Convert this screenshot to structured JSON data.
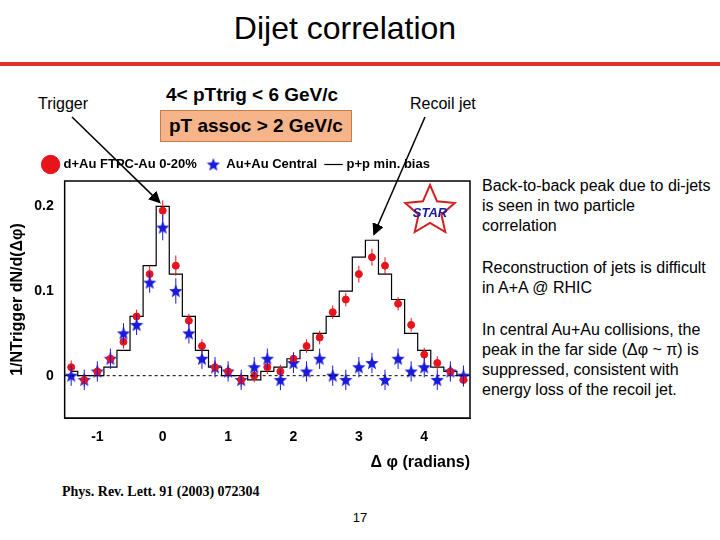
{
  "title": "Dijet correlation",
  "annotations": {
    "trigger": "Trigger",
    "recoil": "Recoil jet"
  },
  "notes": [
    "Back-to-back peak due to di-jets is seen in two particle correlation",
    "Reconstruction of jets is difficult in A+A @ RHIC",
    "In central Au+Au collisions, the peak in the far side (Δφ ~ π) is suppressed, consistent with energy loss of the recoil jet."
  ],
  "page_number": "17",
  "chart_data": {
    "type": "scatter",
    "kinematics": [
      "4< pTtrig < 6 GeV/c",
      "pT assoc > 2 GeV/c"
    ],
    "logo": "STAR",
    "citation": "Phys. Rev. Lett. 91 (2003) 072304",
    "x_label": "Δ φ (radians)",
    "y_label": "1/NTrigger dN/d(Δφ)",
    "xlim": [
      -1.5,
      4.7
    ],
    "xticks": [
      -1,
      0,
      1,
      2,
      3,
      4
    ],
    "ylim": [
      -0.05,
      0.23
    ],
    "yticks": [
      0,
      0.1,
      0.2
    ],
    "legend": "top",
    "x": [
      -1.4,
      -1.2,
      -1.0,
      -0.8,
      -0.6,
      -0.4,
      -0.2,
      0,
      0.2,
      0.4,
      0.6,
      0.8,
      1.0,
      1.2,
      1.4,
      1.6,
      1.8,
      2.0,
      2.2,
      2.4,
      2.6,
      2.8,
      3.0,
      3.2,
      3.4,
      3.6,
      3.8,
      4.0,
      4.2,
      4.4,
      4.6
    ],
    "series": [
      {
        "name": "d+Au FTPC-Au 0-20%",
        "color": "#e8141c",
        "marker": "circle",
        "values": [
          0.01,
          -0.005,
          0.005,
          0.02,
          0.04,
          0.07,
          0.12,
          0.195,
          0.13,
          0.065,
          0.035,
          0.01,
          0.005,
          -0.005,
          0,
          0.01,
          0.005,
          0.02,
          0.035,
          0.045,
          0.075,
          0.09,
          0.12,
          0.14,
          0.13,
          0.085,
          0.06,
          0.025,
          0.015,
          0.005,
          -0.005
        ],
        "errors": [
          0.008,
          0.008,
          0.008,
          0.008,
          0.008,
          0.008,
          0.01,
          0.012,
          0.012,
          0.008,
          0.008,
          0.008,
          0.008,
          0.008,
          0.008,
          0.008,
          0.008,
          0.008,
          0.008,
          0.008,
          0.008,
          0.008,
          0.01,
          0.01,
          0.01,
          0.008,
          0.008,
          0.008,
          0.008,
          0.008,
          0.008
        ]
      },
      {
        "name": "p+p min. bias",
        "color": "#000000",
        "type": "line",
        "line_style": "step",
        "values": [
          0.005,
          0,
          0,
          0.01,
          0.03,
          0.07,
          0.13,
          0.2,
          0.12,
          0.07,
          0.03,
          0.01,
          0,
          0,
          -0.005,
          0.005,
          0.01,
          0.02,
          0.03,
          0.05,
          0.07,
          0.1,
          0.14,
          0.16,
          0.12,
          0.09,
          0.05,
          0.03,
          0.01,
          0.005,
          0
        ]
      },
      {
        "name": "Au+Au Central",
        "color": "#1a1adc",
        "marker": "star",
        "values": [
          0,
          -0.005,
          0.005,
          0.02,
          0.05,
          0.06,
          0.11,
          0.175,
          0.1,
          0.05,
          0.02,
          0.01,
          0.005,
          -0.005,
          0.01,
          0.02,
          -0.005,
          0.015,
          0.005,
          0.02,
          0,
          -0.005,
          0.01,
          0.015,
          -0.005,
          0.02,
          0.005,
          0.01,
          -0.005,
          0.005,
          0
        ],
        "errors": [
          0.012,
          0.012,
          0.012,
          0.012,
          0.012,
          0.012,
          0.012,
          0.015,
          0.015,
          0.012,
          0.012,
          0.012,
          0.012,
          0.012,
          0.012,
          0.012,
          0.012,
          0.012,
          0.012,
          0.012,
          0.012,
          0.012,
          0.012,
          0.012,
          0.012,
          0.012,
          0.012,
          0.012,
          0.012,
          0.012,
          0.012
        ]
      }
    ]
  }
}
